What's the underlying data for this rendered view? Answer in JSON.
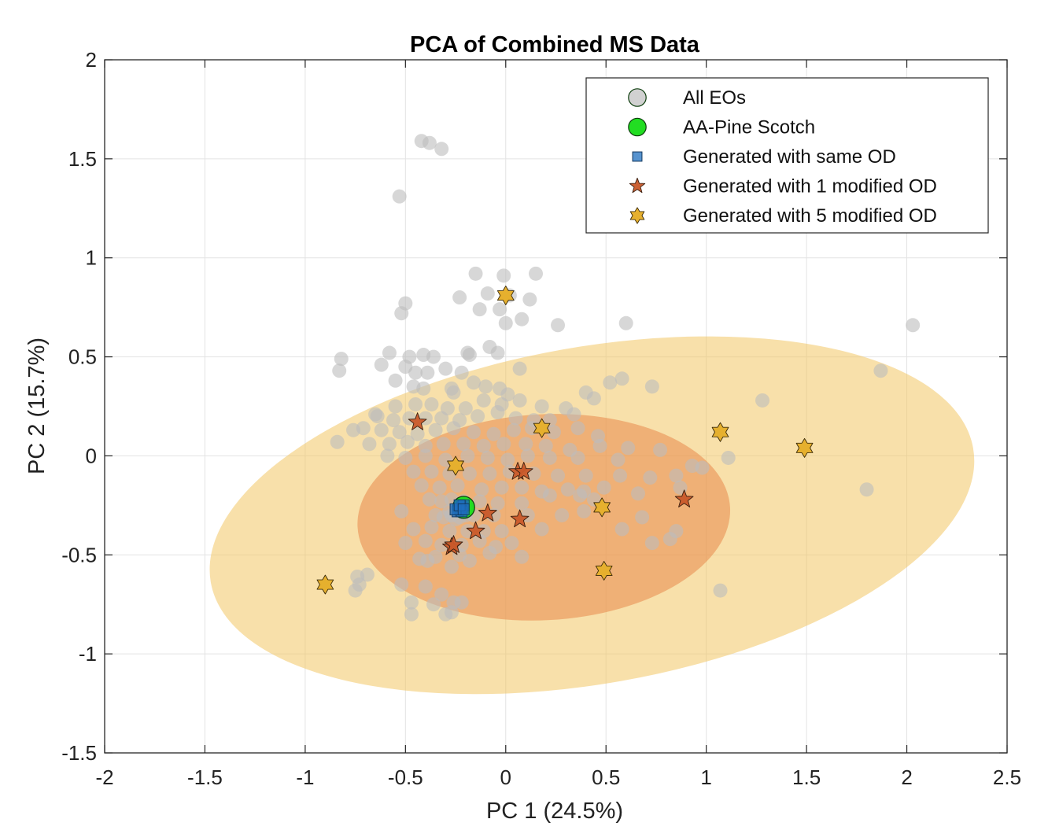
{
  "chart_data": {
    "type": "scatter",
    "title": "PCA of Combined MS Data",
    "xlabel": "PC 1 (24.5%)",
    "ylabel": "PC 2 (15.7%)",
    "xlim": [
      -2,
      2.5
    ],
    "ylim": [
      -1.5,
      2
    ],
    "xticks": [
      "-2",
      "-1.5",
      "-1",
      "-0.5",
      "0",
      "0.5",
      "1",
      "1.5",
      "2",
      "2.5"
    ],
    "yticks": [
      "-1.5",
      "-1",
      "-0.5",
      "0",
      "0.5",
      "1",
      "1.5",
      "2"
    ],
    "grid": true,
    "legend_position": "top-right",
    "ellipses": [
      {
        "fill": "#f2c665",
        "opacity": 0.55,
        "center": [
          0.43,
          -0.3
        ],
        "rx": 1.93,
        "ry": 0.85,
        "angle_deg": 10
      },
      {
        "fill": "#e8894a",
        "opacity": 0.55,
        "center": [
          0.19,
          -0.31
        ],
        "rx": 0.93,
        "ry": 0.52,
        "angle_deg": 3
      }
    ],
    "series": [
      {
        "name": "All EOs",
        "marker": "circle",
        "color": "#bdbdbd",
        "opacity": 0.6,
        "points": [
          [
            -0.42,
            1.59
          ],
          [
            -0.38,
            1.58
          ],
          [
            -0.32,
            1.55
          ],
          [
            -0.53,
            1.31
          ],
          [
            -0.15,
            0.92
          ],
          [
            -0.01,
            0.91
          ],
          [
            0.15,
            0.92
          ],
          [
            -0.5,
            0.77
          ],
          [
            -0.52,
            0.72
          ],
          [
            -0.23,
            0.8
          ],
          [
            -0.09,
            0.82
          ],
          [
            0.02,
            0.81
          ],
          [
            0.12,
            0.79
          ],
          [
            -0.13,
            0.74
          ],
          [
            -0.03,
            0.74
          ],
          [
            0.0,
            0.67
          ],
          [
            0.08,
            0.69
          ],
          [
            0.26,
            0.66
          ],
          [
            0.6,
            0.67
          ],
          [
            2.03,
            0.66
          ],
          [
            -0.58,
            0.52
          ],
          [
            -0.48,
            0.5
          ],
          [
            -0.41,
            0.51
          ],
          [
            -0.36,
            0.5
          ],
          [
            -0.19,
            0.52
          ],
          [
            -0.18,
            0.51
          ],
          [
            -0.08,
            0.55
          ],
          [
            -0.04,
            0.52
          ],
          [
            -0.82,
            0.49
          ],
          [
            -0.62,
            0.46
          ],
          [
            -0.5,
            0.45
          ],
          [
            -0.45,
            0.42
          ],
          [
            -0.39,
            0.42
          ],
          [
            -0.3,
            0.44
          ],
          [
            -0.22,
            0.42
          ],
          [
            0.07,
            0.44
          ],
          [
            -0.83,
            0.43
          ],
          [
            -0.55,
            0.38
          ],
          [
            -0.46,
            0.35
          ],
          [
            -0.41,
            0.34
          ],
          [
            -0.27,
            0.34
          ],
          [
            -0.26,
            0.32
          ],
          [
            -0.16,
            0.37
          ],
          [
            -0.1,
            0.35
          ],
          [
            -0.03,
            0.34
          ],
          [
            0.01,
            0.31
          ],
          [
            0.4,
            0.32
          ],
          [
            0.52,
            0.37
          ],
          [
            0.58,
            0.39
          ],
          [
            0.73,
            0.35
          ],
          [
            1.87,
            0.43
          ],
          [
            -0.55,
            0.25
          ],
          [
            -0.45,
            0.26
          ],
          [
            -0.37,
            0.26
          ],
          [
            -0.29,
            0.24
          ],
          [
            -0.2,
            0.24
          ],
          [
            -0.11,
            0.28
          ],
          [
            -0.02,
            0.26
          ],
          [
            0.07,
            0.28
          ],
          [
            0.18,
            0.25
          ],
          [
            0.3,
            0.24
          ],
          [
            0.44,
            0.29
          ],
          [
            1.28,
            0.28
          ],
          [
            -0.65,
            0.21
          ],
          [
            -0.64,
            0.2
          ],
          [
            -0.56,
            0.18
          ],
          [
            -0.48,
            0.19
          ],
          [
            -0.4,
            0.19
          ],
          [
            -0.32,
            0.19
          ],
          [
            -0.23,
            0.18
          ],
          [
            -0.14,
            0.2
          ],
          [
            -0.04,
            0.22
          ],
          [
            0.05,
            0.19
          ],
          [
            0.14,
            0.18
          ],
          [
            0.22,
            0.18
          ],
          [
            0.34,
            0.21
          ],
          [
            -0.76,
            0.13
          ],
          [
            -0.71,
            0.14
          ],
          [
            -0.62,
            0.13
          ],
          [
            -0.53,
            0.12
          ],
          [
            -0.44,
            0.11
          ],
          [
            -0.35,
            0.13
          ],
          [
            -0.26,
            0.14
          ],
          [
            -0.16,
            0.12
          ],
          [
            -0.06,
            0.11
          ],
          [
            0.04,
            0.13
          ],
          [
            0.13,
            0.14
          ],
          [
            0.24,
            0.12
          ],
          [
            0.36,
            0.14
          ],
          [
            0.46,
            0.1
          ],
          [
            -0.84,
            0.07
          ],
          [
            -0.68,
            0.06
          ],
          [
            -0.58,
            0.06
          ],
          [
            -0.49,
            0.07
          ],
          [
            -0.4,
            0.05
          ],
          [
            -0.31,
            0.06
          ],
          [
            -0.21,
            0.06
          ],
          [
            -0.11,
            0.05
          ],
          [
            -0.01,
            0.06
          ],
          [
            0.1,
            0.06
          ],
          [
            0.2,
            0.05
          ],
          [
            0.32,
            0.03
          ],
          [
            0.47,
            0.05
          ],
          [
            0.61,
            0.04
          ],
          [
            0.77,
            0.03
          ],
          [
            -0.59,
            0.0
          ],
          [
            -0.5,
            -0.01
          ],
          [
            -0.4,
            0.0
          ],
          [
            -0.3,
            -0.02
          ],
          [
            -0.19,
            0.0
          ],
          [
            -0.09,
            -0.01
          ],
          [
            0.01,
            -0.02
          ],
          [
            0.11,
            0.0
          ],
          [
            0.22,
            -0.01
          ],
          [
            0.36,
            -0.01
          ],
          [
            0.56,
            -0.02
          ],
          [
            0.93,
            -0.05
          ],
          [
            0.98,
            -0.06
          ],
          [
            1.11,
            -0.01
          ],
          [
            -0.46,
            -0.08
          ],
          [
            -0.37,
            -0.08
          ],
          [
            -0.28,
            -0.09
          ],
          [
            -0.18,
            -0.09
          ],
          [
            -0.08,
            -0.09
          ],
          [
            0.02,
            -0.08
          ],
          [
            0.14,
            -0.09
          ],
          [
            0.26,
            -0.1
          ],
          [
            0.4,
            -0.1
          ],
          [
            0.57,
            -0.1
          ],
          [
            0.72,
            -0.11
          ],
          [
            0.85,
            -0.1
          ],
          [
            -0.42,
            -0.15
          ],
          [
            -0.33,
            -0.16
          ],
          [
            -0.24,
            -0.15
          ],
          [
            -0.12,
            -0.17
          ],
          [
            -0.02,
            -0.16
          ],
          [
            0.08,
            -0.16
          ],
          [
            0.18,
            -0.18
          ],
          [
            0.31,
            -0.17
          ],
          [
            0.39,
            -0.18
          ],
          [
            0.49,
            -0.16
          ],
          [
            0.66,
            -0.19
          ],
          [
            0.87,
            -0.16
          ],
          [
            1.8,
            -0.17
          ],
          [
            -0.38,
            -0.22
          ],
          [
            -0.32,
            -0.23
          ],
          [
            -0.27,
            -0.22
          ],
          [
            -0.21,
            -0.23
          ],
          [
            -0.13,
            -0.23
          ],
          [
            -0.04,
            -0.24
          ],
          [
            0.08,
            -0.24
          ],
          [
            0.22,
            -0.2
          ],
          [
            0.37,
            -0.2
          ],
          [
            0.44,
            -0.22
          ],
          [
            -0.52,
            -0.28
          ],
          [
            -0.35,
            -0.3
          ],
          [
            -0.31,
            -0.31
          ],
          [
            -0.28,
            -0.28
          ],
          [
            -0.27,
            -0.3
          ],
          [
            -0.25,
            -0.32
          ],
          [
            -0.23,
            -0.31
          ],
          [
            -0.2,
            -0.3
          ],
          [
            -0.16,
            -0.3
          ],
          [
            -0.06,
            -0.3
          ],
          [
            0.11,
            -0.3
          ],
          [
            0.28,
            -0.3
          ],
          [
            0.39,
            -0.28
          ],
          [
            0.68,
            -0.31
          ],
          [
            -0.46,
            -0.37
          ],
          [
            -0.37,
            -0.36
          ],
          [
            -0.28,
            -0.38
          ],
          [
            -0.19,
            -0.38
          ],
          [
            -0.11,
            -0.38
          ],
          [
            -0.02,
            -0.38
          ],
          [
            0.18,
            -0.37
          ],
          [
            0.58,
            -0.37
          ],
          [
            0.85,
            -0.38
          ],
          [
            -0.5,
            -0.44
          ],
          [
            -0.4,
            -0.43
          ],
          [
            -0.32,
            -0.45
          ],
          [
            -0.22,
            -0.45
          ],
          [
            -0.13,
            -0.43
          ],
          [
            -0.05,
            -0.46
          ],
          [
            0.03,
            -0.44
          ],
          [
            0.73,
            -0.44
          ],
          [
            0.82,
            -0.42
          ],
          [
            -0.43,
            -0.52
          ],
          [
            -0.35,
            -0.51
          ],
          [
            -0.23,
            -0.5
          ],
          [
            -0.08,
            -0.49
          ],
          [
            0.08,
            -0.51
          ],
          [
            -0.69,
            -0.6
          ],
          [
            -0.39,
            -0.53
          ],
          [
            -0.27,
            -0.56
          ],
          [
            -0.18,
            -0.53
          ],
          [
            -0.74,
            -0.61
          ],
          [
            -0.73,
            -0.65
          ],
          [
            -0.75,
            -0.68
          ],
          [
            -0.52,
            -0.65
          ],
          [
            -0.4,
            -0.66
          ],
          [
            -0.32,
            -0.7
          ],
          [
            -0.47,
            -0.74
          ],
          [
            -0.36,
            -0.75
          ],
          [
            -0.26,
            -0.74
          ],
          [
            -0.22,
            -0.74
          ],
          [
            -0.27,
            -0.79
          ],
          [
            -0.3,
            -0.8
          ],
          [
            -0.47,
            -0.8
          ],
          [
            1.07,
            -0.68
          ]
        ]
      },
      {
        "name": "AA-Pine Scotch",
        "marker": "circle",
        "color": "#22dd22",
        "points": [
          [
            -0.21,
            -0.26
          ]
        ]
      },
      {
        "name": "Generated with same OD",
        "marker": "square",
        "color": "#1f6fbf",
        "points": [
          [
            -0.23,
            -0.27
          ],
          [
            -0.22,
            -0.26
          ],
          [
            -0.24,
            -0.28
          ],
          [
            -0.21,
            -0.25
          ],
          [
            -0.22,
            -0.28
          ],
          [
            -0.25,
            -0.27
          ],
          [
            -0.23,
            -0.25
          ],
          [
            -0.21,
            -0.27
          ]
        ]
      },
      {
        "name": "Generated with 1 modified OD",
        "marker": "star",
        "color": "#c8582a",
        "points": [
          [
            -0.44,
            0.17
          ],
          [
            0.06,
            -0.08
          ],
          [
            0.09,
            -0.08
          ],
          [
            -0.09,
            -0.29
          ],
          [
            0.07,
            -0.32
          ],
          [
            -0.15,
            -0.38
          ],
          [
            -0.27,
            -0.46
          ],
          [
            -0.26,
            -0.45
          ],
          [
            0.89,
            -0.22
          ]
        ]
      },
      {
        "name": "Generated with 5 modified OD",
        "marker": "hexagram",
        "color": "#e6b02e",
        "points": [
          [
            0.0,
            0.81
          ],
          [
            0.18,
            0.14
          ],
          [
            -0.25,
            -0.05
          ],
          [
            1.07,
            0.12
          ],
          [
            1.49,
            0.04
          ],
          [
            0.48,
            -0.26
          ],
          [
            0.49,
            -0.58
          ],
          [
            -0.9,
            -0.65
          ]
        ]
      }
    ]
  }
}
